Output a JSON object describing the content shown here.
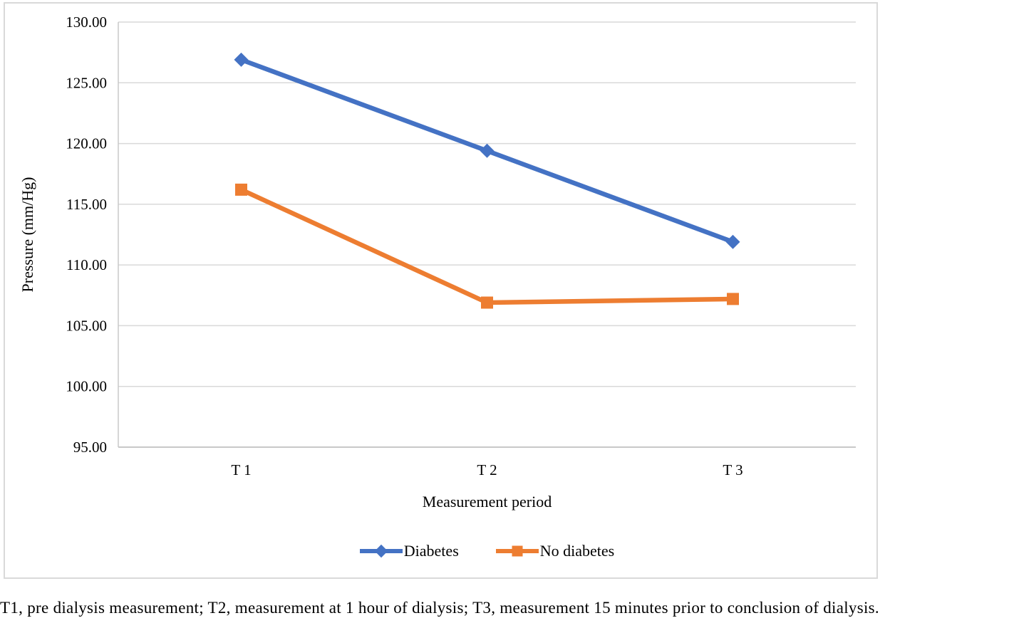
{
  "figure": {
    "caption": "T1, pre dialysis measurement; T2, measurement at 1 hour of dialysis; T3, measurement 15 minutes prior to conclusion of dialysis."
  },
  "chart_data": {
    "type": "line",
    "title": "",
    "categories": [
      "T 1",
      "T 2",
      "T 3"
    ],
    "series": [
      {
        "name": "Diabetes",
        "values": [
          126.9,
          119.4,
          111.9
        ],
        "color": "#4472C4",
        "marker": "diamond"
      },
      {
        "name": "No diabetes",
        "values": [
          116.2,
          106.9,
          107.2
        ],
        "color": "#ED7D31",
        "marker": "square"
      }
    ],
    "xlabel": "Measurement period",
    "ylabel": "Pressure (mm/Hg)",
    "ylim": [
      95,
      130
    ],
    "yticks": [
      95,
      100,
      105,
      110,
      115,
      120,
      125,
      130
    ],
    "ytick_format": "two-decimals",
    "grid": "horizontal",
    "grid_color": "#D9D9D9",
    "axis_line_color": "#C8C8C8",
    "legend_position": "bottom-center",
    "plot_background": "#FFFFFF",
    "frame_border_color": "#D9D9D9"
  }
}
